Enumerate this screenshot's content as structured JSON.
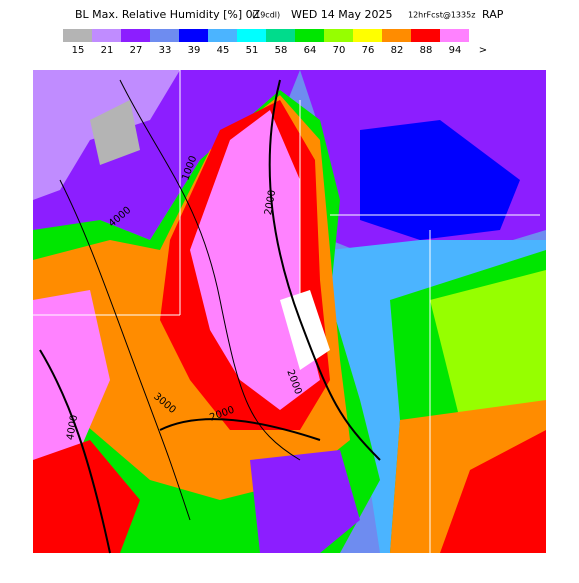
{
  "header": {
    "title": "BL Max. Relative Humidity [%] 0Z",
    "cycle": "(19cdl)",
    "date": "WED 14 May 2025",
    "forecast": "12hrFcst@1335z",
    "model": "RAP"
  },
  "legend": {
    "items": [
      {
        "label": 15,
        "color": "#b4b4b4"
      },
      {
        "label": 21,
        "color": "#c08cff"
      },
      {
        "label": 27,
        "color": "#8c1eff"
      },
      {
        "label": 33,
        "color": "#6e8cf0"
      },
      {
        "label": 39,
        "color": "#0000ff"
      },
      {
        "label": 45,
        "color": "#4bb4ff"
      },
      {
        "label": 51,
        "color": "#00ffff"
      },
      {
        "label": 58,
        "color": "#00dc8c"
      },
      {
        "label": 64,
        "color": "#00e600"
      },
      {
        "label": 70,
        "color": "#96ff00"
      },
      {
        "label": 76,
        "color": "#ffff00"
      },
      {
        "label": 82,
        "color": "#ff8c00"
      },
      {
        "label": 88,
        "color": "#ff0000"
      },
      {
        "label": 94,
        "color": "#ff82ff"
      }
    ],
    "more": ">"
  },
  "contours": [
    "1000",
    "4000",
    "2000",
    "2000",
    "3000",
    "2000",
    "4000"
  ]
}
